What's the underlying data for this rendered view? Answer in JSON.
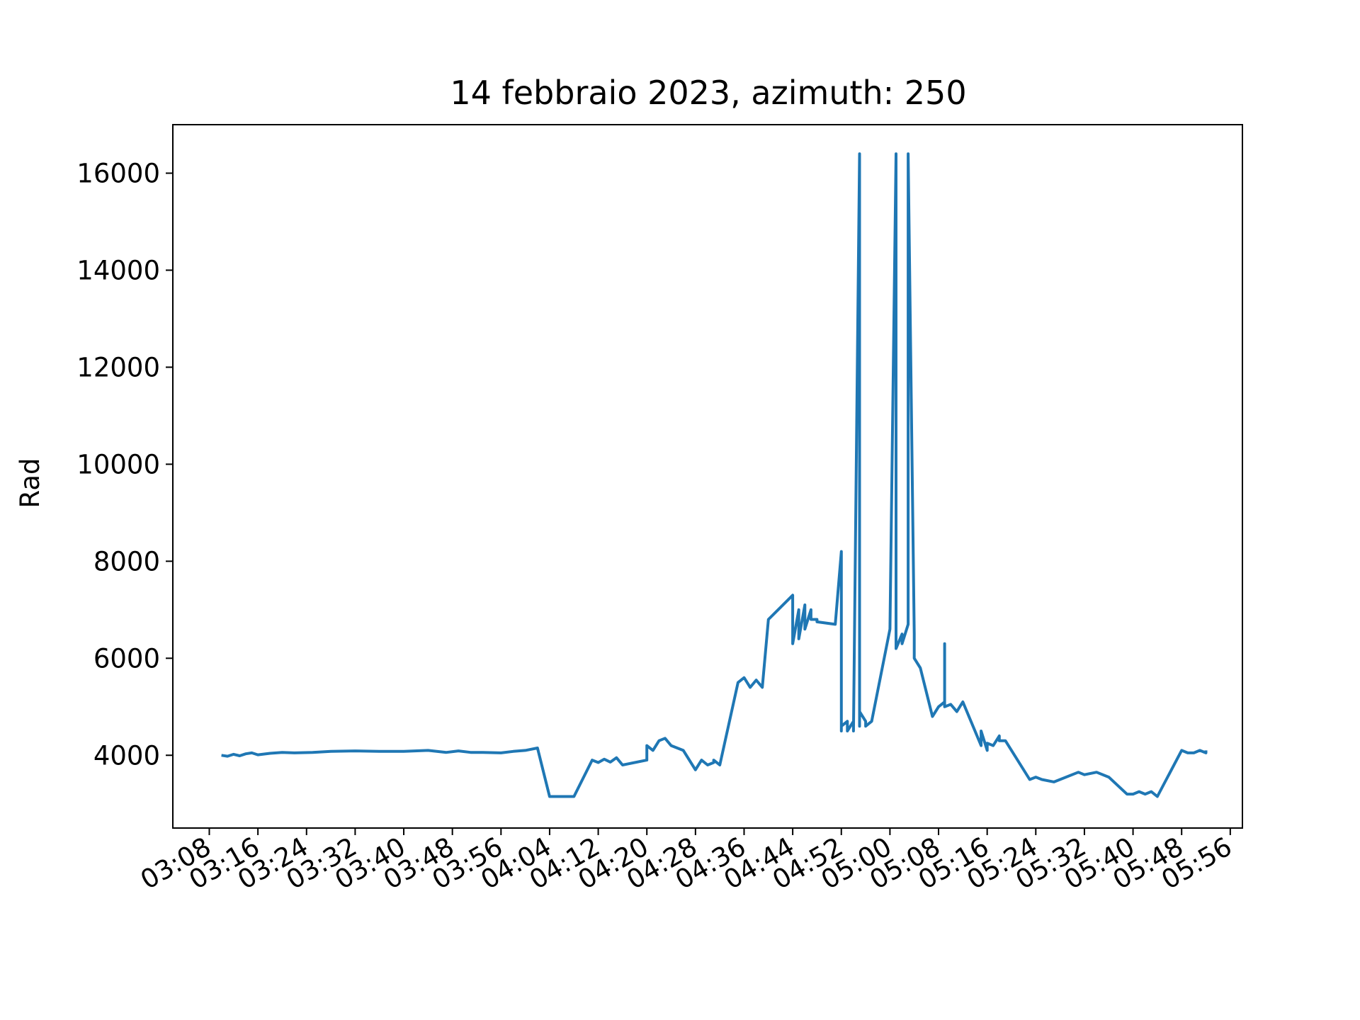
{
  "chart_data": {
    "type": "line",
    "title": "14 febbraio 2023, azimuth: 250",
    "xlabel": "",
    "ylabel": "Rad",
    "xlim": [
      "03:02",
      "05:58"
    ],
    "ylim": [
      2500,
      17000
    ],
    "x_ticks": [
      "03:08",
      "03:16",
      "03:24",
      "03:32",
      "03:40",
      "03:48",
      "03:56",
      "04:04",
      "04:12",
      "04:20",
      "04:28",
      "04:36",
      "04:44",
      "04:52",
      "05:00",
      "05:08",
      "05:16",
      "05:24",
      "05:32",
      "05:40",
      "05:48",
      "05:56"
    ],
    "y_ticks": [
      4000,
      6000,
      8000,
      10000,
      12000,
      14000,
      16000
    ],
    "grid": false,
    "series": [
      {
        "color": "#1f77b4",
        "x": [
          "03:10",
          "03:11",
          "03:12",
          "03:13",
          "03:14",
          "03:15",
          "03:16",
          "03:18",
          "03:20",
          "03:22",
          "03:25",
          "03:28",
          "03:32",
          "03:36",
          "03:40",
          "03:44",
          "03:47",
          "03:49",
          "03:51",
          "03:53",
          "03:56",
          "03:58",
          "04:00",
          "04:02",
          "04:04",
          "04:07",
          "04:08",
          "04:11",
          "04:12",
          "04:13",
          "04:14",
          "04:15",
          "04:16",
          "04:20",
          "04:20",
          "04:21",
          "04:22",
          "04:23",
          "04:24",
          "04:26",
          "04:28",
          "04:29",
          "04:30",
          "04:31",
          "04:31",
          "04:32",
          "04:32",
          "04:35",
          "04:36",
          "04:37",
          "04:38",
          "04:39",
          "04:40",
          "04:44",
          "04:44",
          "04:45",
          "04:45",
          "04:46",
          "04:46",
          "04:47",
          "04:47",
          "04:48",
          "04:48",
          "04:51",
          "04:52",
          "04:52",
          "04:52",
          "04:53",
          "04:53",
          "04:54",
          "04:54",
          "04:55",
          "04:55",
          "04:55",
          "04:56",
          "04:56",
          "04:57",
          "05:00",
          "05:01",
          "05:01",
          "05:01",
          "05:01",
          "05:02",
          "05:02",
          "05:03",
          "05:03",
          "05:04",
          "05:04",
          "05:04",
          "05:05",
          "05:07",
          "05:08",
          "05:09",
          "05:09",
          "05:09",
          "05:10",
          "05:11",
          "05:12",
          "05:15",
          "05:15",
          "05:16",
          "05:16",
          "05:17",
          "05:18",
          "05:18",
          "05:19",
          "05:23",
          "05:24",
          "05:25",
          "05:27",
          "05:31",
          "05:32",
          "05:34",
          "05:36",
          "05:39",
          "05:40",
          "05:41",
          "05:42",
          "05:43",
          "05:44",
          "05:48",
          "05:49",
          "05:50",
          "05:51",
          "05:52",
          "05:52"
        ],
        "y": [
          4000,
          3980,
          4020,
          3990,
          4030,
          4050,
          4010,
          4040,
          4060,
          4050,
          4060,
          4080,
          4090,
          4080,
          4080,
          4100,
          4060,
          4090,
          4060,
          4060,
          4050,
          4080,
          4100,
          4150,
          3150,
          3150,
          3150,
          3900,
          3850,
          3920,
          3860,
          3950,
          3800,
          3900,
          4200,
          4100,
          4300,
          4350,
          4200,
          4100,
          3700,
          3900,
          3800,
          3850,
          3900,
          3800,
          3800,
          5500,
          5600,
          5400,
          5550,
          5400,
          6800,
          7300,
          6300,
          7000,
          6400,
          7100,
          6600,
          7000,
          6800,
          6800,
          6750,
          6700,
          8200,
          4500,
          4600,
          4700,
          4500,
          4700,
          4500,
          16400,
          4600,
          4900,
          4700,
          4600,
          4700,
          6600,
          16400,
          6400,
          6600,
          6200,
          6500,
          6300,
          6700,
          16400,
          6500,
          6000,
          6000,
          5800,
          4800,
          5000,
          5100,
          6300,
          5000,
          5050,
          4900,
          5100,
          4200,
          4500,
          4100,
          4250,
          4200,
          4400,
          4300,
          4300,
          3500,
          3550,
          3500,
          3450,
          3650,
          3600,
          3650,
          3550,
          3200,
          3200,
          3250,
          3200,
          3250,
          3150,
          4100,
          4050,
          4050,
          4100,
          4050,
          4100
        ]
      }
    ]
  }
}
